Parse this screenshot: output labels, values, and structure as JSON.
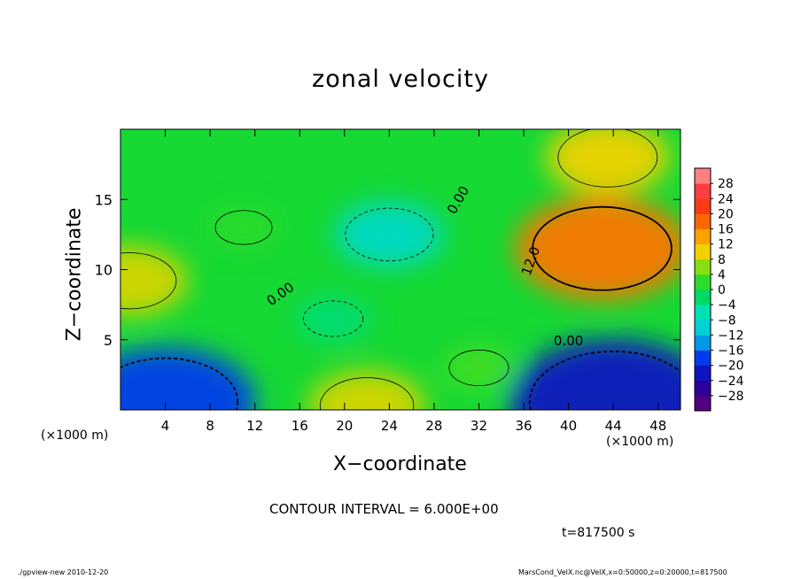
{
  "chart_data": {
    "type": "heatmap",
    "title": "zonal velocity",
    "xlabel": "X−coordinate",
    "ylabel": "Z−coordinate",
    "x_unit_label": "(×1000 m)",
    "xlim": [
      0,
      50
    ],
    "ylim": [
      0,
      20
    ],
    "x_ticks": [
      4,
      8,
      12,
      16,
      20,
      24,
      28,
      32,
      36,
      40,
      44,
      48
    ],
    "x_tick_labels": [
      "4",
      "8",
      "12",
      "16",
      "20",
      "24",
      "28",
      "32",
      "36",
      "40",
      "44",
      "48"
    ],
    "y_ticks": [
      5,
      10,
      15
    ],
    "y_tick_labels": [
      "5",
      "10",
      "15"
    ],
    "colorbar_levels": [
      -30,
      -28,
      -24,
      -20,
      -16,
      -12,
      -8,
      -4,
      0,
      4,
      8,
      12,
      16,
      20,
      24,
      28,
      30
    ],
    "colorbar_labels": [
      "28",
      "24",
      "20",
      "16",
      "12",
      "8",
      "4",
      "0",
      "−4",
      "−8",
      "−12",
      "−16",
      "−20",
      "−24",
      "−28"
    ],
    "colorbar_values": [
      28,
      24,
      20,
      16,
      12,
      8,
      4,
      0,
      -4,
      -8,
      -12,
      -16,
      -20,
      -24,
      -28
    ],
    "features": [
      {
        "x": 43,
        "z": 11.5,
        "value": 17
      },
      {
        "x": 43.5,
        "z": 18,
        "value": 10
      },
      {
        "x": 0.8,
        "z": 9.2,
        "value": 9
      },
      {
        "x": 22,
        "z": 0.3,
        "value": 9
      },
      {
        "x": 24,
        "z": 12.5,
        "value": -8
      },
      {
        "x": 19,
        "z": 6.5,
        "value": -3
      },
      {
        "x": 4,
        "z": 0.6,
        "value": -18
      },
      {
        "x": 44,
        "z": 0.6,
        "value": -22
      },
      {
        "x": 11,
        "z": 13,
        "value": 2
      },
      {
        "x": 32,
        "z": 3,
        "value": 3
      }
    ],
    "base_value": 1,
    "contour_labels": [
      "0.00",
      "0.00",
      "12.0",
      "0.00"
    ],
    "contour_interval_text": "CONTOUR INTERVAL = 6.000E+00"
  },
  "annotations": {
    "time": "t=817500 s",
    "footer_left": "./gpview-new  2010-12-20",
    "footer_right": "MarsCond_VelX.nc@VelX,x=0:50000,z=0:20000,t=817500"
  }
}
